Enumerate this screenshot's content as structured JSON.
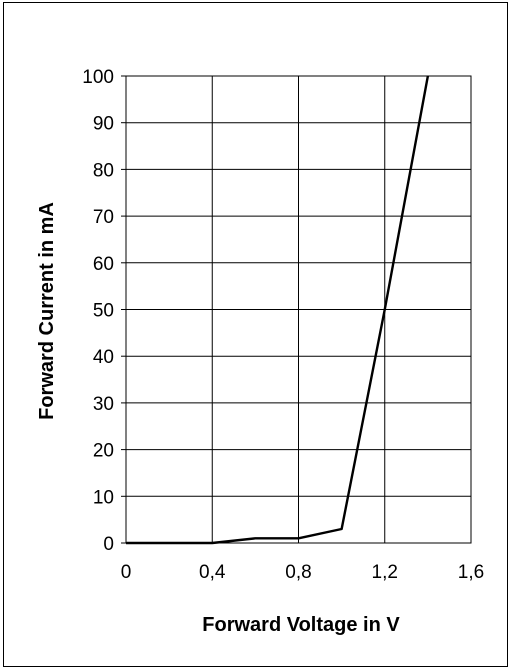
{
  "chart_data": {
    "type": "line",
    "title": "",
    "xlabel": "Forward Voltage in V",
    "ylabel": "Forward Current in mA",
    "xlim": [
      0,
      1.6
    ],
    "ylim": [
      0,
      100
    ],
    "x_ticks": [
      0,
      0.4,
      0.8,
      1.2,
      1.6
    ],
    "x_tick_labels": [
      "0",
      "0,4",
      "0,8",
      "1,2",
      "1,6"
    ],
    "y_ticks": [
      0,
      10,
      20,
      30,
      40,
      50,
      60,
      70,
      80,
      90,
      100
    ],
    "y_tick_labels": [
      "0",
      "10",
      "20",
      "30",
      "40",
      "50",
      "60",
      "70",
      "80",
      "90",
      "100"
    ],
    "grid": true,
    "legend": "none",
    "line_color": "#000000",
    "series": [
      {
        "x": [
          0,
          0.4,
          0.6,
          0.8,
          1.0,
          1.2,
          1.4
        ],
        "y": [
          0,
          0,
          1,
          1,
          3,
          50,
          100
        ]
      }
    ]
  }
}
